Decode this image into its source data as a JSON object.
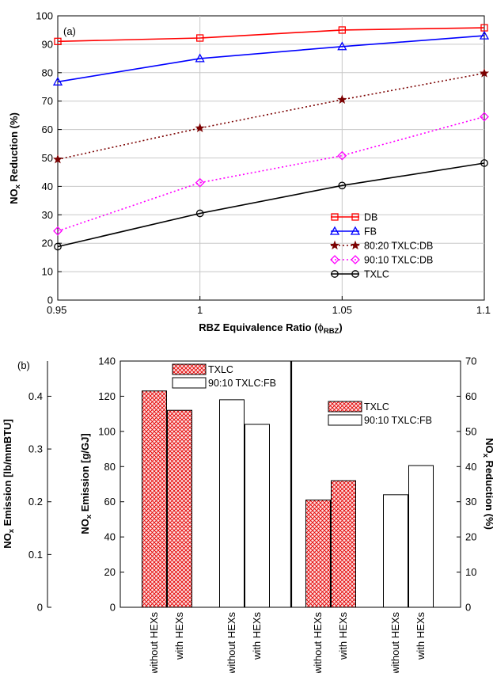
{
  "chart_data": [
    {
      "panel_label": "(a)",
      "type": "line",
      "x": [
        0.95,
        1,
        1.05,
        1.1
      ],
      "x_tick_labels": [
        "0.95",
        "1",
        "1.05",
        "1.1"
      ],
      "xlabel": {
        "main": "RBZ Equivalence Ratio (",
        "phi": "ϕ",
        "sub": "RBZ",
        "end": ")"
      },
      "ylabel": {
        "main": "NO",
        "sub": "x",
        "end": " Reduction (%)"
      },
      "xlim": [
        0.95,
        1.1
      ],
      "ylim": [
        0,
        100
      ],
      "y_ticks": [
        0,
        10,
        20,
        30,
        40,
        50,
        60,
        70,
        80,
        90,
        100
      ],
      "grid": true,
      "legend_position": "bottom-right",
      "series": [
        {
          "name": "DB",
          "values": [
            91,
            92.2,
            95,
            95.8
          ],
          "color": "#ff0000",
          "marker": "square",
          "line": "solid"
        },
        {
          "name": "FB",
          "values": [
            76.8,
            85,
            89.2,
            93
          ],
          "color": "#0000ff",
          "marker": "triangle",
          "line": "solid"
        },
        {
          "name": "80:20 TXLC:DB",
          "values": [
            49.5,
            60.5,
            70.5,
            79.8
          ],
          "color": "#7b0000",
          "marker": "star",
          "line": "dotted"
        },
        {
          "name": "90:10 TXLC:DB",
          "values": [
            24.3,
            41.3,
            50.8,
            64.5
          ],
          "color": "#ff00ff",
          "marker": "diamond",
          "line": "dotted"
        },
        {
          "name": "TXLC",
          "values": [
            18.8,
            30.5,
            40.3,
            48.2
          ],
          "color": "#000000",
          "marker": "circle",
          "line": "solid"
        }
      ]
    },
    {
      "panel_label": "(b)",
      "type": "bar",
      "outer_axis": {
        "label": {
          "main": "NO",
          "sub": "x",
          "end": " Emission [lb/mmBTU]"
        },
        "ticks": [
          "0",
          "0.1",
          "0.2",
          "0.3",
          "0.4"
        ],
        "ylim": [
          0,
          0.4667
        ]
      },
      "left_axis": {
        "label": {
          "main": "NO",
          "sub": "x",
          "end": " Emission [g/GJ]"
        },
        "ticks": [
          0,
          20,
          40,
          60,
          80,
          100,
          120,
          140
        ],
        "ylim": [
          0,
          140
        ]
      },
      "right_axis": {
        "label": {
          "main": "NO",
          "sub": "x",
          "end": " Reduction (%)"
        },
        "ticks": [
          0,
          10,
          20,
          30,
          40,
          50,
          60,
          70
        ],
        "ylim": [
          0,
          70
        ]
      },
      "left_group": {
        "legend": [
          {
            "name": "TXLC",
            "style": "hatched"
          },
          {
            "name": "90:10 TXLC:FB",
            "style": "plain"
          }
        ],
        "bars": [
          {
            "label": "without HEXs",
            "value": 123,
            "style": "hatched"
          },
          {
            "label": "with HEXs",
            "value": 112,
            "style": "hatched"
          },
          {
            "label": "without HEXs",
            "value": 118,
            "style": "plain"
          },
          {
            "label": "with HEXs",
            "value": 104,
            "style": "plain"
          }
        ]
      },
      "right_group": {
        "legend": [
          {
            "name": "TXLC",
            "style": "hatched"
          },
          {
            "name": "90:10 TXLC:FB",
            "style": "plain"
          }
        ],
        "bars": [
          {
            "label": "without HEXs",
            "value": 30.5,
            "style": "hatched"
          },
          {
            "label": "with HEXs",
            "value": 36,
            "style": "hatched"
          },
          {
            "label": "without HEXs",
            "value": 32,
            "style": "plain"
          },
          {
            "label": "with HEXs",
            "value": 40.3,
            "style": "plain"
          }
        ]
      },
      "colors": {
        "hatch": "#e60000",
        "hatch_bg": "#fbe3e3",
        "bar_stroke": "#000000"
      }
    }
  ]
}
